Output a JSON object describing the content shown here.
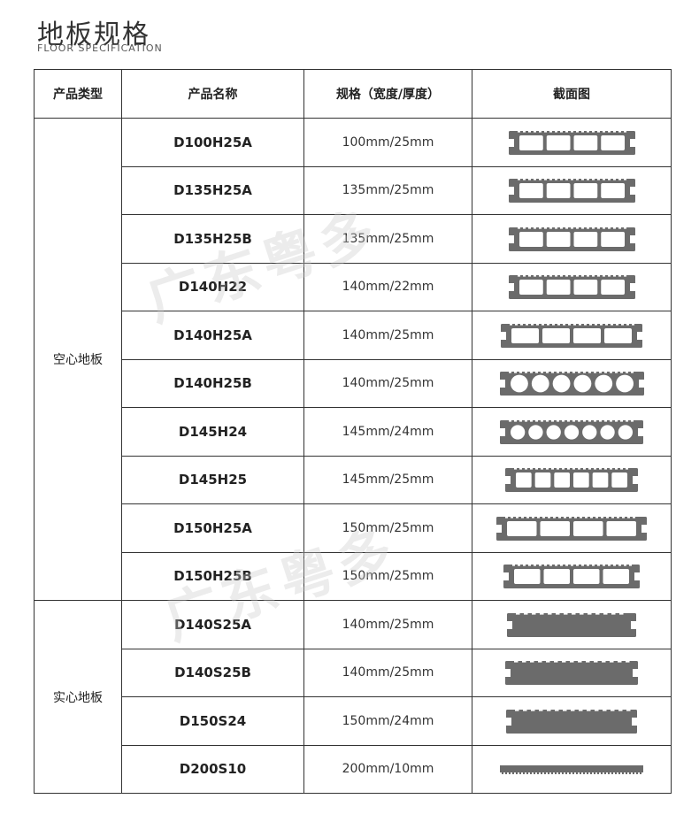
{
  "title": "地板规格",
  "subtitle": "FLOOR SPECIFICATION",
  "headers": [
    "产品类型",
    "产品名称",
    "规格（宽度/厚度）",
    "截面图"
  ],
  "groups": [
    {
      "type": "空心地板"
    },
    {
      "type": "实心地板"
    }
  ],
  "watermark": "广东粤多",
  "profile_color": "#6b6b6b",
  "rows": [
    {
      "name": "D100H25A",
      "spec": "100mm/25mm",
      "profile": {
        "kind": "hollow-rect",
        "holes": 4
      }
    },
    {
      "name": "D135H25A",
      "spec": "135mm/25mm",
      "profile": {
        "kind": "hollow-rect",
        "holes": 4
      }
    },
    {
      "name": "D135H25B",
      "spec": "135mm/25mm",
      "profile": {
        "kind": "hollow-rect",
        "holes": 4
      }
    },
    {
      "name": "D140H22",
      "spec": "140mm/22mm",
      "profile": {
        "kind": "hollow-rect",
        "holes": 4
      }
    },
    {
      "name": "D140H25A",
      "spec": "140mm/25mm",
      "profile": {
        "kind": "hollow-rect",
        "holes": 4
      }
    },
    {
      "name": "D140H25B",
      "spec": "140mm/25mm",
      "profile": {
        "kind": "hollow-circle",
        "holes": 6
      }
    },
    {
      "name": "D145H24",
      "spec": "145mm/24mm",
      "profile": {
        "kind": "hollow-circle",
        "holes": 7
      }
    },
    {
      "name": "D145H25",
      "spec": "145mm/25mm",
      "profile": {
        "kind": "hollow-rect",
        "holes": 6
      }
    },
    {
      "name": "D150H25A",
      "spec": "150mm/25mm",
      "profile": {
        "kind": "hollow-rect",
        "holes": 4
      }
    },
    {
      "name": "D150H25B",
      "spec": "150mm/25mm",
      "profile": {
        "kind": "hollow-rect",
        "holes": 4
      }
    },
    {
      "name": "D140S25A",
      "spec": "140mm/25mm",
      "profile": {
        "kind": "solid",
        "holes": 0
      }
    },
    {
      "name": "D140S25B",
      "spec": "140mm/25mm",
      "profile": {
        "kind": "solid",
        "holes": 0
      }
    },
    {
      "name": "D150S24",
      "spec": "150mm/24mm",
      "profile": {
        "kind": "solid",
        "holes": 0
      }
    },
    {
      "name": "D200S10",
      "spec": "200mm/10mm",
      "profile": {
        "kind": "thin",
        "holes": 0
      }
    }
  ]
}
